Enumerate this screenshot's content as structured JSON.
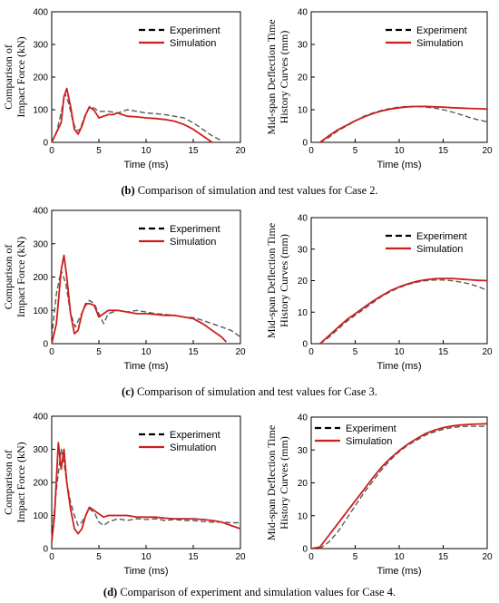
{
  "captions": [
    {
      "letter": "(b)",
      "text": " Comparison of simulation and test values for Case 2."
    },
    {
      "letter": "(c)",
      "text": " Comparison of simulation and test values for Case 3."
    },
    {
      "letter": "(d)",
      "text": " Comparison of experiment and simulation values for Case 4."
    }
  ],
  "colors": {
    "experiment": "#5a5a5a",
    "simulation": "#cc1f1f"
  },
  "chart_data": [
    {
      "id": "b-force",
      "type": "line",
      "ylabel": [
        "Comparison of",
        "Impact Force (kN)"
      ],
      "xlabel": "Time (ms)",
      "xlim": [
        0,
        20
      ],
      "ylim": [
        0,
        400
      ],
      "xticks": [
        0,
        5,
        10,
        15,
        20
      ],
      "yticks": [
        0,
        100,
        200,
        300,
        400
      ],
      "legend": "top-right",
      "series": [
        {
          "name": "Experiment",
          "x": [
            0,
            0.5,
            1,
            1.4,
            1.8,
            2.2,
            2.6,
            3,
            3.5,
            4,
            4.5,
            5,
            6,
            7,
            8,
            9,
            10,
            11,
            12,
            13,
            14,
            15,
            16,
            17,
            18
          ],
          "y": [
            0,
            30,
            90,
            150,
            120,
            70,
            35,
            40,
            80,
            110,
            105,
            95,
            95,
            90,
            100,
            95,
            90,
            88,
            85,
            80,
            75,
            60,
            40,
            20,
            5
          ]
        },
        {
          "name": "Simulation",
          "x": [
            0,
            0.5,
            1,
            1.3,
            1.6,
            2,
            2.4,
            2.8,
            3.2,
            3.6,
            4,
            4.5,
            5,
            5.5,
            6,
            6.5,
            7,
            8,
            9,
            10,
            11,
            12,
            13,
            14,
            15,
            16,
            17
          ],
          "y": [
            0,
            30,
            60,
            140,
            165,
            110,
            40,
            25,
            50,
            85,
            108,
            98,
            75,
            80,
            85,
            85,
            90,
            80,
            78,
            75,
            73,
            70,
            65,
            55,
            40,
            20,
            0
          ]
        }
      ]
    },
    {
      "id": "b-deflection",
      "type": "line",
      "ylabel": [
        "Mid-span Deflection Time",
        "History Curves (mm)"
      ],
      "xlabel": "Time (ms)",
      "xlim": [
        0,
        20
      ],
      "ylim": [
        0,
        40
      ],
      "xticks": [
        0,
        5,
        10,
        15,
        20
      ],
      "yticks": [
        0,
        10,
        20,
        30,
        40
      ],
      "legend": "top-right",
      "series": [
        {
          "name": "Experiment",
          "x": [
            1,
            2,
            3,
            4,
            5,
            6,
            7,
            8,
            9,
            10,
            11,
            12,
            13,
            14,
            15,
            16,
            17,
            18,
            19,
            20
          ],
          "y": [
            0,
            1.5,
            3.5,
            5,
            6.5,
            8,
            9,
            9.8,
            10.4,
            10.8,
            11,
            11,
            10.8,
            10.5,
            10,
            9.3,
            8.5,
            7.6,
            6.9,
            6.3
          ]
        },
        {
          "name": "Simulation",
          "x": [
            1,
            2,
            3,
            4,
            5,
            6,
            7,
            8,
            9,
            10,
            11,
            12,
            13,
            14,
            15,
            16,
            17,
            18,
            19,
            20
          ],
          "y": [
            0,
            2,
            3.8,
            5.2,
            6.6,
            7.8,
            8.8,
            9.6,
            10.2,
            10.6,
            10.9,
            11,
            11,
            10.9,
            10.8,
            10.6,
            10.5,
            10.4,
            10.3,
            10.2
          ]
        }
      ]
    },
    {
      "id": "c-force",
      "type": "line",
      "ylabel": [
        "Comparison of",
        "Impact Force (kN)"
      ],
      "xlabel": "Time (ms)",
      "xlim": [
        0,
        20
      ],
      "ylim": [
        0,
        400
      ],
      "xticks": [
        0,
        5,
        10,
        15,
        20
      ],
      "yticks": [
        0,
        100,
        200,
        300,
        400
      ],
      "legend": "top-right",
      "series": [
        {
          "name": "Experiment",
          "x": [
            0,
            0.5,
            1,
            1.5,
            2,
            2.5,
            3,
            3.5,
            4,
            4.5,
            5,
            5.5,
            6,
            7,
            8,
            9,
            10,
            11,
            12,
            13,
            14,
            15,
            16,
            17,
            18,
            19,
            20
          ],
          "y": [
            20,
            150,
            220,
            180,
            90,
            50,
            80,
            110,
            130,
            120,
            90,
            60,
            90,
            100,
            95,
            100,
            95,
            90,
            88,
            85,
            80,
            78,
            70,
            60,
            50,
            40,
            20
          ]
        },
        {
          "name": "Simulation",
          "x": [
            0,
            0.5,
            1,
            1.3,
            1.6,
            2,
            2.4,
            2.8,
            3.2,
            3.6,
            4,
            4.5,
            5,
            5.5,
            6,
            7,
            8,
            9,
            10,
            11,
            12,
            13,
            14,
            15,
            16,
            17,
            18,
            18.5
          ],
          "y": [
            0,
            60,
            220,
            265,
            200,
            90,
            30,
            40,
            90,
            120,
            120,
            115,
            80,
            90,
            100,
            100,
            95,
            90,
            90,
            88,
            85,
            85,
            80,
            75,
            60,
            40,
            20,
            5
          ]
        }
      ]
    },
    {
      "id": "c-deflection",
      "type": "line",
      "ylabel": [
        "Mid-span Deflection Time",
        "History Curves (mm)"
      ],
      "xlabel": "Time (ms)",
      "xlim": [
        0,
        20
      ],
      "ylim": [
        0,
        40
      ],
      "xticks": [
        0,
        5,
        10,
        15,
        20
      ],
      "yticks": [
        0,
        10,
        20,
        30,
        40
      ],
      "legend": "top-right",
      "series": [
        {
          "name": "Experiment",
          "x": [
            1,
            2,
            3,
            4,
            5,
            6,
            7,
            8,
            9,
            10,
            11,
            12,
            13,
            14,
            15,
            16,
            17,
            18,
            19,
            20
          ],
          "y": [
            0,
            2,
            4.5,
            7,
            9,
            11,
            13,
            15,
            16.5,
            17.8,
            18.8,
            19.5,
            20,
            20.2,
            20.2,
            20,
            19.5,
            19,
            18,
            17
          ]
        },
        {
          "name": "Simulation",
          "x": [
            1,
            2,
            3,
            4,
            5,
            6,
            7,
            8,
            9,
            10,
            11,
            12,
            13,
            14,
            15,
            16,
            17,
            18,
            19,
            20
          ],
          "y": [
            0,
            2.5,
            5,
            7.5,
            9.5,
            11.5,
            13.5,
            15.2,
            16.8,
            18,
            19,
            19.8,
            20.3,
            20.6,
            20.7,
            20.7,
            20.5,
            20.3,
            20.1,
            20
          ]
        }
      ]
    },
    {
      "id": "d-force",
      "type": "line",
      "ylabel": [
        "Comparison of",
        "Impact Force (kN)"
      ],
      "xlabel": "Time (ms)",
      "xlim": [
        0,
        20
      ],
      "ylim": [
        0,
        400
      ],
      "xticks": [
        0,
        5,
        10,
        15,
        20
      ],
      "yticks": [
        0,
        100,
        200,
        300,
        400
      ],
      "legend": "top-right",
      "series": [
        {
          "name": "Experiment",
          "x": [
            0,
            0.5,
            1,
            1.3,
            1.6,
            2,
            2.4,
            2.8,
            3.2,
            3.6,
            4,
            4.5,
            5,
            5.5,
            6,
            7,
            8,
            9,
            10,
            11,
            12,
            13,
            14,
            15,
            16,
            17,
            18,
            19,
            20
          ],
          "y": [
            30,
            180,
            300,
            260,
            200,
            140,
            100,
            70,
            80,
            100,
            120,
            110,
            80,
            70,
            80,
            90,
            85,
            90,
            88,
            90,
            85,
            88,
            85,
            85,
            82,
            80,
            80,
            78,
            78
          ]
        },
        {
          "name": "Simulation",
          "x": [
            0,
            0.3,
            0.7,
            1,
            1.3,
            1.6,
            2,
            2.4,
            2.8,
            3.2,
            3.6,
            4,
            4.5,
            5,
            5.5,
            6,
            7,
            8,
            9,
            10,
            11,
            12,
            13,
            14,
            15,
            16,
            17,
            18,
            19,
            20
          ],
          "y": [
            20,
            100,
            320,
            240,
            300,
            200,
            120,
            60,
            45,
            60,
            100,
            125,
            115,
            105,
            95,
            100,
            100,
            100,
            95,
            95,
            95,
            92,
            90,
            90,
            90,
            88,
            85,
            80,
            70,
            60
          ]
        }
      ]
    },
    {
      "id": "d-deflection",
      "type": "line",
      "ylabel": [
        "Mid-span Deflection Time",
        "History Curves (mm)"
      ],
      "xlabel": "Time (ms)",
      "xlim": [
        0,
        20
      ],
      "ylim": [
        0,
        40
      ],
      "xticks": [
        0,
        5,
        10,
        15,
        20
      ],
      "yticks": [
        0,
        10,
        20,
        30,
        40
      ],
      "legend": "top-left",
      "series": [
        {
          "name": "Experiment",
          "x": [
            0,
            1,
            2,
            3,
            4,
            5,
            6,
            7,
            8,
            9,
            10,
            11,
            12,
            13,
            14,
            15,
            16,
            17,
            18,
            19,
            20
          ],
          "y": [
            0,
            0,
            2,
            5,
            9,
            13,
            17,
            20.5,
            24,
            27,
            29.5,
            31.5,
            33,
            34.5,
            35.5,
            36.3,
            36.8,
            37.1,
            37.2,
            37.2,
            37.2
          ]
        },
        {
          "name": "Simulation",
          "x": [
            0,
            1,
            2,
            3,
            4,
            5,
            6,
            7,
            8,
            9,
            10,
            11,
            12,
            13,
            14,
            15,
            16,
            17,
            18,
            19,
            20
          ],
          "y": [
            0,
            0.5,
            4,
            7.5,
            11,
            14.5,
            18,
            21.5,
            24.8,
            27.5,
            29.8,
            31.8,
            33.5,
            35,
            36,
            36.8,
            37.3,
            37.6,
            37.8,
            37.9,
            38
          ]
        }
      ]
    }
  ]
}
